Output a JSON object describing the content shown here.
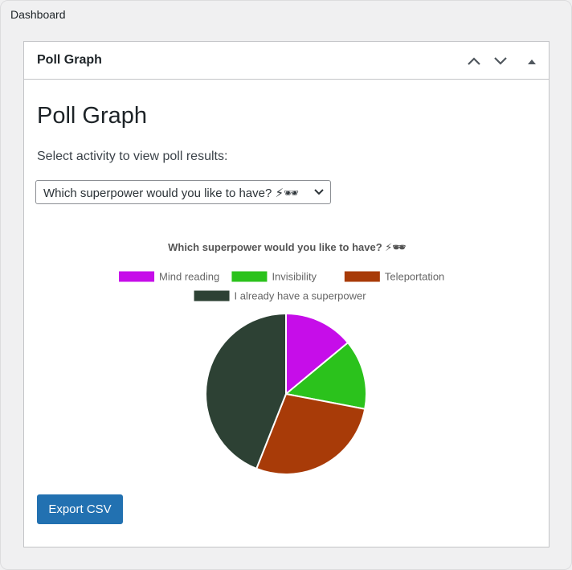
{
  "page": {
    "breadcrumb": "Dashboard"
  },
  "widget": {
    "title": "Poll Graph",
    "heading": "Poll Graph",
    "select_label": "Select activity to view poll results:",
    "selected_activity": "Which superpower would you like to have? ⚡🕶",
    "export_label": "Export CSV"
  },
  "chart_data": {
    "type": "pie",
    "title": "Which superpower would you like to have? ⚡🕶",
    "legend_position": "top",
    "categories": [
      "Mind reading",
      "Invisibility",
      "Teleportation",
      "I already have a superpower"
    ],
    "values": [
      14,
      14,
      28,
      44
    ],
    "colors": [
      "#c60de9",
      "#2bc21c",
      "#a83b08",
      "#2d4134"
    ]
  }
}
